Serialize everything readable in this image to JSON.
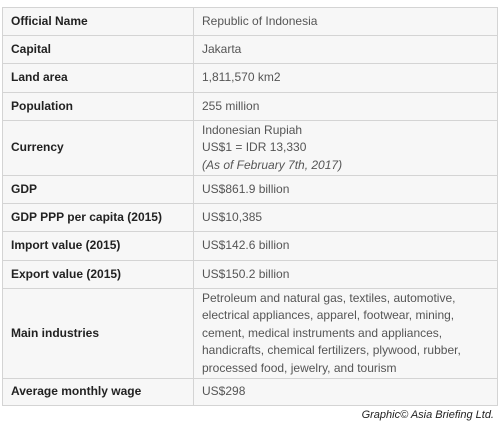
{
  "table": {
    "rows": [
      {
        "label": "Official Name",
        "value": "Republic of Indonesia"
      },
      {
        "label": "Capital",
        "value": "Jakarta"
      },
      {
        "label": "Land area",
        "value": "1,811,570 km2"
      },
      {
        "label": "Population",
        "value": "255 million"
      },
      {
        "label": "Currency",
        "value": [
          "Indonesian Rupiah",
          "US$1 = IDR 13,330",
          "(As of February 7th, 2017)"
        ]
      },
      {
        "label": "GDP",
        "value": "US$861.9 billion"
      },
      {
        "label": "GDP PPP per capita (2015)",
        "value": "US$10,385"
      },
      {
        "label": "Import value (2015)",
        "value": "US$142.6 billion"
      },
      {
        "label": "Export value (2015)",
        "value": "US$150.2 billion"
      },
      {
        "label": "Main industries",
        "value": "Petroleum and natural gas, textiles, automotive, electrical appliances, apparel, footwear, mining, cement, medical instruments and appliances, handicrafts, chemical fertilizers, plywood, rubber, processed food, jewelry, and tourism"
      },
      {
        "label": "Average monthly wage",
        "value": "US$298"
      }
    ]
  },
  "footer": {
    "credit": "Graphic© Asia Briefing Ltd."
  }
}
